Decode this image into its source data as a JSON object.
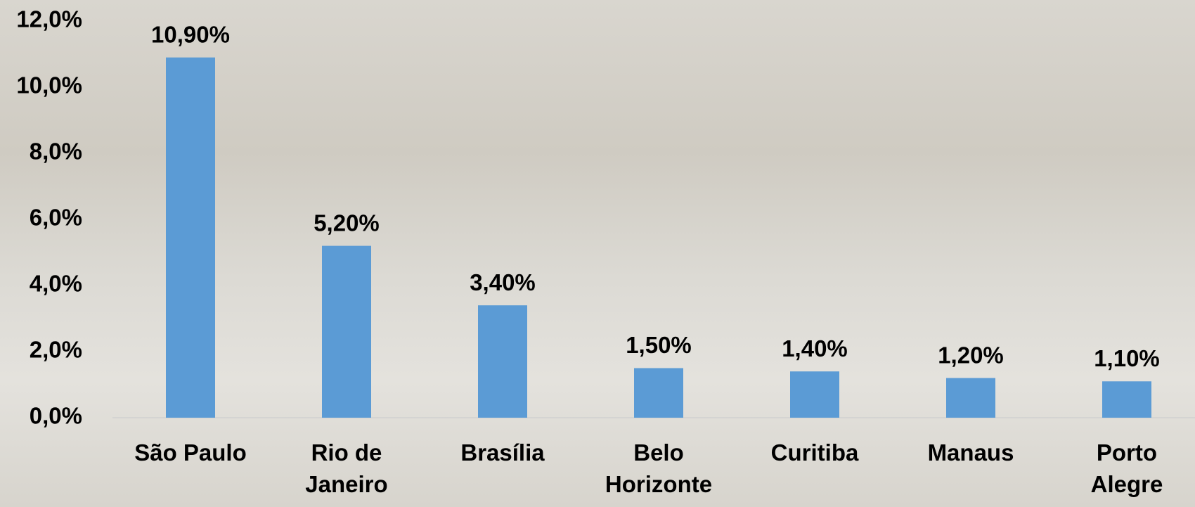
{
  "chart_data": {
    "type": "bar",
    "categories": [
      "São Paulo",
      "Rio de Janeiro",
      "Brasília",
      "Belo Horizonte",
      "Curitiba",
      "Manaus",
      "Porto Alegre"
    ],
    "values": [
      10.9,
      5.2,
      3.4,
      1.5,
      1.4,
      1.2,
      1.1
    ],
    "value_labels": [
      "10,90%",
      "5,20%",
      "3,40%",
      "1,50%",
      "1,40%",
      "1,20%",
      "1,10%"
    ],
    "color": "#5b9bd5",
    "ylim": [
      0,
      12
    ],
    "yticks": [
      {
        "value": 0,
        "label": "0,0%"
      },
      {
        "value": 2,
        "label": "2,0%"
      },
      {
        "value": 4,
        "label": "4,0%"
      },
      {
        "value": 6,
        "label": "6,0%"
      },
      {
        "value": 8,
        "label": "8,0%"
      },
      {
        "value": 10,
        "label": "10,0%"
      },
      {
        "value": 12,
        "label": "12,0%"
      }
    ],
    "grid": false
  }
}
